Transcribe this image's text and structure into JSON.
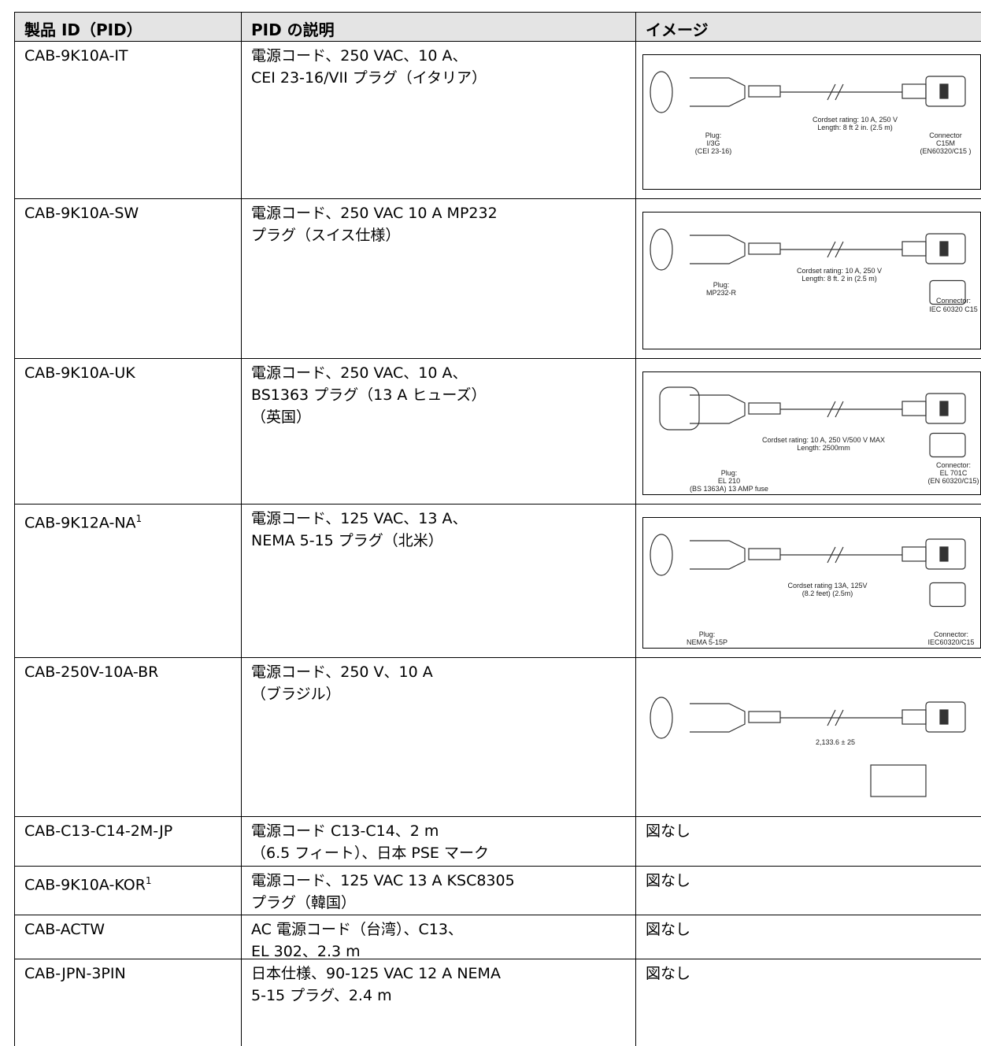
{
  "table": {
    "header": [
      "製品 ID（PID）",
      "PID の説明",
      "イメージ"
    ],
    "rows": [
      {
        "pid": "CAB-9K10A-IT",
        "description": [
          "電源コード、250 VAC、10 A、",
          "CEI 23-16/VII プラグ（イタリア）"
        ],
        "image_labels": [
          "Cordset rating: 10 A, 250 V",
          "Length: 8 ft 2 in. (2.5 m)",
          "Plug:",
          "I/3G",
          "(CEI 23-16)",
          "Connector",
          "C15M",
          "(EN60320/C15 )"
        ]
      },
      {
        "pid": "CAB-9K10A-SW",
        "description": [
          "電源コード、250 VAC 10 A MP232",
          "プラグ（スイス仕様）"
        ],
        "image_labels": [
          "Cordset rating: 10 A, 250 V",
          "Length: 8 ft. 2 in (2.5 m)",
          "Plug:",
          "MP232-R",
          "Connector:",
          "IEC 60320 C15"
        ]
      },
      {
        "pid": "CAB-9K10A-UK",
        "description": [
          "電源コード、250 VAC、10 A、",
          "BS1363 プラグ（13 A ヒューズ）",
          "（英国）"
        ],
        "image_labels": [
          "Cordset rating: 10 A, 250 V/500 V MAX",
          "Length: 2500mm",
          "Plug:",
          "EL 210",
          "(BS 1363A) 13 AMP fuse",
          "Connector:",
          "EL 701C",
          "(EN 60320/C15)"
        ]
      },
      {
        "pid": "CAB-9K12A-NA",
        "footnote": "1",
        "description": [
          "電源コード、125 VAC、13 A、",
          "NEMA 5-15 プラグ（北米）"
        ],
        "image_labels": [
          "Cordset rating 13A, 125V",
          "(8.2 feet) (2.5m)",
          "Plug:",
          "NEMA 5-15P",
          "Connector:",
          "IEC60320/C15"
        ]
      },
      {
        "pid": "CAB-250V-10A-BR",
        "description": [
          "電源コード、250 V、10 A",
          "（ブラジル）"
        ],
        "image_labels": [
          "2,133.6 ± 25"
        ]
      },
      {
        "pid": "CAB-C13-C14-2M-JP",
        "description": [
          "電源コード C13-C14、2 m",
          "（6.5 フィート）、日本 PSE マーク"
        ],
        "image": "図なし"
      },
      {
        "pid": "CAB-9K10A-KOR",
        "footnote": "1",
        "description": [
          "電源コード、125 VAC 13 A KSC8305",
          "プラグ（韓国）"
        ],
        "image": "図なし"
      },
      {
        "pid": "CAB-ACTW",
        "description": [
          "AC 電源コード（台湾）、C13、",
          "EL 302、2.3 m"
        ],
        "image": "図なし"
      },
      {
        "pid": "CAB-JPN-3PIN",
        "description": [
          "日本仕様、90-125 VAC 12 A NEMA",
          "5-15 プラグ、2.4 m"
        ],
        "image": "図なし"
      }
    ]
  }
}
